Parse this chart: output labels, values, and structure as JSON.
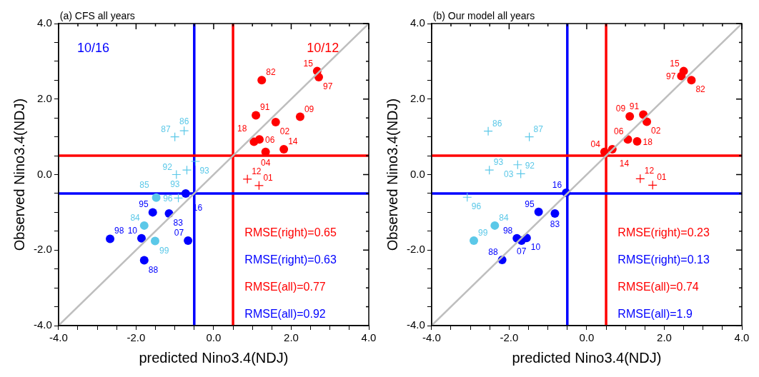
{
  "chart_data": [
    {
      "type": "scatter",
      "title": "(a) CFS all years",
      "xlabel": "predicted Nino3.4(NDJ)",
      "ylabel": "Observed Nino3.4(NDJ)",
      "xlim": [
        -4,
        4
      ],
      "ylim": [
        -4,
        4
      ],
      "xticks": [
        {
          "value": -4,
          "label": "-4.0"
        },
        {
          "value": -3.5,
          "label": null
        },
        {
          "value": -3,
          "label": null
        },
        {
          "value": -2.5,
          "label": null
        },
        {
          "value": -2,
          "label": "-2.0"
        },
        {
          "value": -1.5,
          "label": null
        },
        {
          "value": -1,
          "label": null
        },
        {
          "value": -0.5,
          "label": null
        },
        {
          "value": 0,
          "label": "0.0"
        },
        {
          "value": 0.5,
          "label": null
        },
        {
          "value": 1,
          "label": null
        },
        {
          "value": 1.5,
          "label": null
        },
        {
          "value": 2,
          "label": "2.0"
        },
        {
          "value": 2.5,
          "label": null
        },
        {
          "value": 3,
          "label": null
        },
        {
          "value": 3.5,
          "label": null
        },
        {
          "value": 4,
          "label": "4.0"
        }
      ],
      "yticks": [
        {
          "value": -4,
          "label": "-4.0"
        },
        {
          "value": -3.5,
          "label": null
        },
        {
          "value": -3,
          "label": null
        },
        {
          "value": -2.5,
          "label": null
        },
        {
          "value": -2,
          "label": "-2.0"
        },
        {
          "value": -1.5,
          "label": null
        },
        {
          "value": -1,
          "label": null
        },
        {
          "value": -0.5,
          "label": null
        },
        {
          "value": 0,
          "label": "0.0"
        },
        {
          "value": 0.5,
          "label": null
        },
        {
          "value": 1,
          "label": null
        },
        {
          "value": 1.5,
          "label": null
        },
        {
          "value": 2,
          "label": "2.0"
        },
        {
          "value": 2.5,
          "label": null
        },
        {
          "value": 3,
          "label": null
        },
        {
          "value": 3.5,
          "label": null
        },
        {
          "value": 4,
          "label": "4.0"
        }
      ],
      "grid": false,
      "legend": false,
      "series": [
        {
          "type": "line",
          "marker": "none",
          "color": "#bebebe",
          "x": [
            -4,
            4
          ],
          "values": [
            -4,
            4
          ]
        },
        {
          "marker": "circle",
          "color": "#ff0000",
          "x": [
            1.24,
            2.67,
            2.71,
            1.09,
            1.6,
            2.23,
            1.18,
            1.04,
            1.34,
            1.81
          ],
          "values": [
            2.5,
            2.74,
            2.58,
            1.57,
            1.39,
            1.53,
            0.93,
            0.87,
            0.6,
            0.67
          ]
        },
        {
          "marker": "cross",
          "color": "#ff0000",
          "x": [
            0.87,
            1.17
          ],
          "values": [
            -0.12,
            -0.29
          ]
        },
        {
          "marker": "cross",
          "color": "#5bc8e8",
          "x": [
            -1.0,
            -0.76,
            -0.47,
            -0.96,
            -0.69,
            -0.91
          ],
          "values": [
            1.0,
            1.16,
            0.35,
            0.0,
            0.12,
            -0.62
          ]
        },
        {
          "marker": "circle",
          "color": "#5bc8e8",
          "x": [
            -1.48,
            -1.79,
            -1.51
          ],
          "values": [
            -0.61,
            -1.35,
            -1.76
          ]
        },
        {
          "marker": "circle",
          "color": "#0000ff",
          "x": [
            -0.72,
            -1.57,
            -1.15,
            -2.67,
            -1.86,
            -0.66,
            -1.79
          ],
          "values": [
            -0.5,
            -1.0,
            -1.03,
            -1.7,
            -1.69,
            -1.75,
            -2.27
          ]
        }
      ],
      "ref_lines": [
        {
          "axis": "x",
          "value": -0.5,
          "color": "#0000ff"
        },
        {
          "axis": "x",
          "value": 0.5,
          "color": "#ff0000"
        },
        {
          "axis": "y",
          "value": 0.5,
          "color": "#ff0000"
        },
        {
          "axis": "y",
          "value": -0.5,
          "color": "#0000ff"
        }
      ],
      "annotations": [
        "10/16",
        "10/12",
        "RMSE(right)=0.65",
        "RMSE(right)=0.63",
        "RMSE(all)=0.77",
        "RMSE(all)=0.92",
        {
          "text": "82",
          "x": 1.24,
          "y": 2.5
        },
        {
          "text": "15",
          "x": 2.67,
          "y": 2.74
        },
        {
          "text": "97",
          "x": 2.71,
          "y": 2.58
        },
        {
          "text": "91",
          "x": 1.09,
          "y": 1.57
        },
        {
          "text": "02",
          "x": 1.6,
          "y": 1.39
        },
        {
          "text": "09",
          "x": 2.23,
          "y": 1.53
        },
        {
          "text": "06",
          "x": 1.18,
          "y": 0.93
        },
        {
          "text": "18",
          "x": 1.04,
          "y": 0.87
        },
        {
          "text": "04",
          "x": 1.34,
          "y": 0.6
        },
        {
          "text": "14",
          "x": 1.81,
          "y": 0.67
        },
        {
          "text": "12",
          "x": 0.87,
          "y": -0.12
        },
        {
          "text": "01",
          "x": 1.17,
          "y": -0.29
        },
        {
          "text": "87",
          "x": -1.0,
          "y": 1.0
        },
        {
          "text": "86",
          "x": -0.76,
          "y": 1.16
        },
        {
          "text": "93",
          "x": -0.47,
          "y": 0.35
        },
        {
          "text": "92",
          "x": -0.96,
          "y": 0.0
        },
        {
          "text": "93",
          "x": -0.69,
          "y": 0.12
        },
        {
          "text": "96",
          "x": -0.91,
          "y": -0.62
        },
        {
          "text": "85",
          "x": -1.48,
          "y": -0.61
        },
        {
          "text": "84",
          "x": -1.79,
          "y": -1.35
        },
        {
          "text": "99",
          "x": -1.51,
          "y": -1.76
        },
        {
          "text": "16",
          "x": -0.72,
          "y": -0.5
        },
        {
          "text": "95",
          "x": -1.57,
          "y": -1.0
        },
        {
          "text": "83",
          "x": -1.15,
          "y": -1.03
        },
        {
          "text": "98",
          "x": -2.67,
          "y": -1.7
        },
        {
          "text": "10",
          "x": -1.86,
          "y": -1.69
        },
        {
          "text": "07",
          "x": -0.66,
          "y": -1.75
        },
        {
          "text": "88",
          "x": -1.79,
          "y": -2.27
        }
      ]
    },
    {
      "type": "scatter",
      "title": "(b) Our model all years",
      "xlabel": "predicted Nino3.4(NDJ)",
      "ylabel": "Observed Nino3.4(NDJ)",
      "xlim": [
        -4,
        4
      ],
      "ylim": [
        -4,
        4
      ],
      "xticks": [
        {
          "value": -4,
          "label": "-4.0"
        },
        {
          "value": -3.5,
          "label": null
        },
        {
          "value": -3,
          "label": null
        },
        {
          "value": -2.5,
          "label": null
        },
        {
          "value": -2,
          "label": "-2.0"
        },
        {
          "value": -1.5,
          "label": null
        },
        {
          "value": -1,
          "label": null
        },
        {
          "value": -0.5,
          "label": null
        },
        {
          "value": 0,
          "label": "0.0"
        },
        {
          "value": 0.5,
          "label": null
        },
        {
          "value": 1,
          "label": null
        },
        {
          "value": 1.5,
          "label": null
        },
        {
          "value": 2,
          "label": "2.0"
        },
        {
          "value": 2.5,
          "label": null
        },
        {
          "value": 3,
          "label": null
        },
        {
          "value": 3.5,
          "label": null
        },
        {
          "value": 4,
          "label": "4.0"
        }
      ],
      "yticks": [
        {
          "value": -4,
          "label": "-4.0"
        },
        {
          "value": -3.5,
          "label": null
        },
        {
          "value": -3,
          "label": null
        },
        {
          "value": -2.5,
          "label": null
        },
        {
          "value": -2,
          "label": "-2.0"
        },
        {
          "value": -1.5,
          "label": null
        },
        {
          "value": -1,
          "label": null
        },
        {
          "value": -0.5,
          "label": null
        },
        {
          "value": 0,
          "label": "0.0"
        },
        {
          "value": 0.5,
          "label": null
        },
        {
          "value": 1,
          "label": null
        },
        {
          "value": 1.5,
          "label": null
        },
        {
          "value": 2,
          "label": "2.0"
        },
        {
          "value": 2.5,
          "label": null
        },
        {
          "value": 3,
          "label": null
        },
        {
          "value": 3.5,
          "label": null
        },
        {
          "value": 4,
          "label": "4.0"
        }
      ],
      "grid": false,
      "legend": false,
      "series": [
        {
          "type": "line",
          "marker": "none",
          "color": "#bebebe",
          "x": [
            -4,
            4
          ],
          "values": [
            -4,
            4
          ]
        },
        {
          "marker": "circle",
          "color": "#ff0000",
          "x": [
            2.5,
            2.44,
            2.7,
            1.11,
            1.46,
            1.55,
            1.06,
            1.3,
            0.46,
            0.66
          ],
          "values": [
            2.74,
            2.61,
            2.5,
            1.54,
            1.59,
            1.4,
            0.93,
            0.88,
            0.6,
            0.67
          ]
        },
        {
          "marker": "cross",
          "color": "#ff0000",
          "x": [
            1.38,
            1.7
          ],
          "values": [
            -0.11,
            -0.28
          ]
        },
        {
          "marker": "cross",
          "color": "#5bc8e8",
          "x": [
            -2.54,
            -1.48,
            -2.51,
            -1.78,
            -1.7,
            -3.08
          ],
          "values": [
            1.15,
            1.0,
            0.12,
            0.26,
            0.02,
            -0.6
          ]
        },
        {
          "marker": "circle",
          "color": "#5bc8e8",
          "x": [
            -2.37,
            -2.91
          ],
          "values": [
            -1.35,
            -1.75
          ]
        },
        {
          "marker": "circle",
          "color": "#0000ff",
          "x": [
            -0.53,
            -1.24,
            -0.82,
            -1.8,
            -1.55,
            -1.68,
            -2.18
          ],
          "values": [
            -0.48,
            -0.99,
            -1.03,
            -1.69,
            -1.68,
            -1.75,
            -2.26
          ]
        }
      ],
      "ref_lines": [
        {
          "axis": "x",
          "value": -0.5,
          "color": "#0000ff"
        },
        {
          "axis": "x",
          "value": 0.5,
          "color": "#ff0000"
        },
        {
          "axis": "y",
          "value": 0.5,
          "color": "#ff0000"
        },
        {
          "axis": "y",
          "value": -0.5,
          "color": "#0000ff"
        }
      ],
      "annotations": [
        "RMSE(right)=0.23",
        "RMSE(right)=0.13",
        "RMSE(all)=0.74",
        "RMSE(all)=1.9",
        {
          "text": "15",
          "x": 2.5,
          "y": 2.74
        },
        {
          "text": "97",
          "x": 2.44,
          "y": 2.61
        },
        {
          "text": "82",
          "x": 2.7,
          "y": 2.5
        },
        {
          "text": "09",
          "x": 1.11,
          "y": 1.54
        },
        {
          "text": "91",
          "x": 1.46,
          "y": 1.59
        },
        {
          "text": "02",
          "x": 1.55,
          "y": 1.4
        },
        {
          "text": "06",
          "x": 1.06,
          "y": 0.93
        },
        {
          "text": "18",
          "x": 1.3,
          "y": 0.88
        },
        {
          "text": "04",
          "x": 0.46,
          "y": 0.6
        },
        {
          "text": "14",
          "x": 0.66,
          "y": 0.67
        },
        {
          "text": "12",
          "x": 1.38,
          "y": -0.11
        },
        {
          "text": "01",
          "x": 1.7,
          "y": -0.28
        },
        {
          "text": "86",
          "x": -2.54,
          "y": 1.15
        },
        {
          "text": "87",
          "x": -1.48,
          "y": 1.0
        },
        {
          "text": "93",
          "x": -2.51,
          "y": 0.12
        },
        {
          "text": "03",
          "x": -1.78,
          "y": 0.26
        },
        {
          "text": "92",
          "x": -1.7,
          "y": 0.02
        },
        {
          "text": "96",
          "x": -3.08,
          "y": -0.6
        },
        {
          "text": "84",
          "x": -2.37,
          "y": -1.35
        },
        {
          "text": "99",
          "x": -2.91,
          "y": -1.75
        },
        {
          "text": "16",
          "x": -0.53,
          "y": -0.48
        },
        {
          "text": "95",
          "x": -1.24,
          "y": -0.99
        },
        {
          "text": "83",
          "x": -0.82,
          "y": -1.03
        },
        {
          "text": "98",
          "x": -1.8,
          "y": -1.69
        },
        {
          "text": "10",
          "x": -1.55,
          "y": -1.68
        },
        {
          "text": "07",
          "x": -1.68,
          "y": -1.75
        },
        {
          "text": "88",
          "x": -2.18,
          "y": -2.26
        }
      ]
    }
  ]
}
